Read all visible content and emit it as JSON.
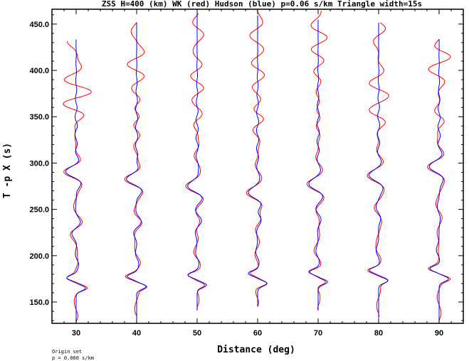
{
  "chart_data": {
    "type": "line",
    "title": "ZSS H=400 (km) WK (red) Hudson (blue) p=0.06 s/km Triangle width=15s",
    "xlabel": "Distance (deg)",
    "ylabel": "T -p X (s)",
    "xlim": [
      26,
      94
    ],
    "ylim": [
      127,
      466
    ],
    "x_ticks": [
      30,
      40,
      50,
      60,
      70,
      80,
      90
    ],
    "x_tick_labels": [
      "30",
      "40",
      "50",
      "60",
      "70",
      "80",
      "90"
    ],
    "y_ticks": [
      150,
      200,
      250,
      300,
      350,
      400,
      450
    ],
    "y_tick_labels": [
      "150.0",
      "200.0",
      "250.0",
      "300.0",
      "350.0",
      "400.0",
      "450.0"
    ],
    "grid": false,
    "series_colors": {
      "wk": "#ff0000",
      "hudson": "#0000ff"
    },
    "traces": [
      {
        "distance": 30,
        "wk_t0": 128,
        "wk_t1": 432,
        "hudson_t0": 128,
        "hudson_t1": 434
      },
      {
        "distance": 40,
        "wk_t0": 132,
        "wk_t1": 452,
        "hudson_t0": 132,
        "hudson_t1": 452
      },
      {
        "distance": 50,
        "wk_t0": 141,
        "wk_t1": 462,
        "hudson_t0": 141,
        "hudson_t1": 462
      },
      {
        "distance": 60,
        "wk_t0": 145,
        "wk_t1": 465,
        "hudson_t0": 145,
        "hudson_t1": 460
      },
      {
        "distance": 70,
        "wk_t0": 141,
        "wk_t1": 465,
        "hudson_t0": 141,
        "hudson_t1": 455
      },
      {
        "distance": 80,
        "wk_t0": 133,
        "wk_t1": 452,
        "hudson_t0": 133,
        "hudson_t1": 452
      },
      {
        "distance": 90,
        "wk_t0": 127,
        "wk_t1": 434,
        "hudson_t0": 127,
        "hudson_t1": 434
      }
    ]
  },
  "footnote": {
    "line1": "Origin set",
    "line2": "p = 0.060 s/km"
  }
}
